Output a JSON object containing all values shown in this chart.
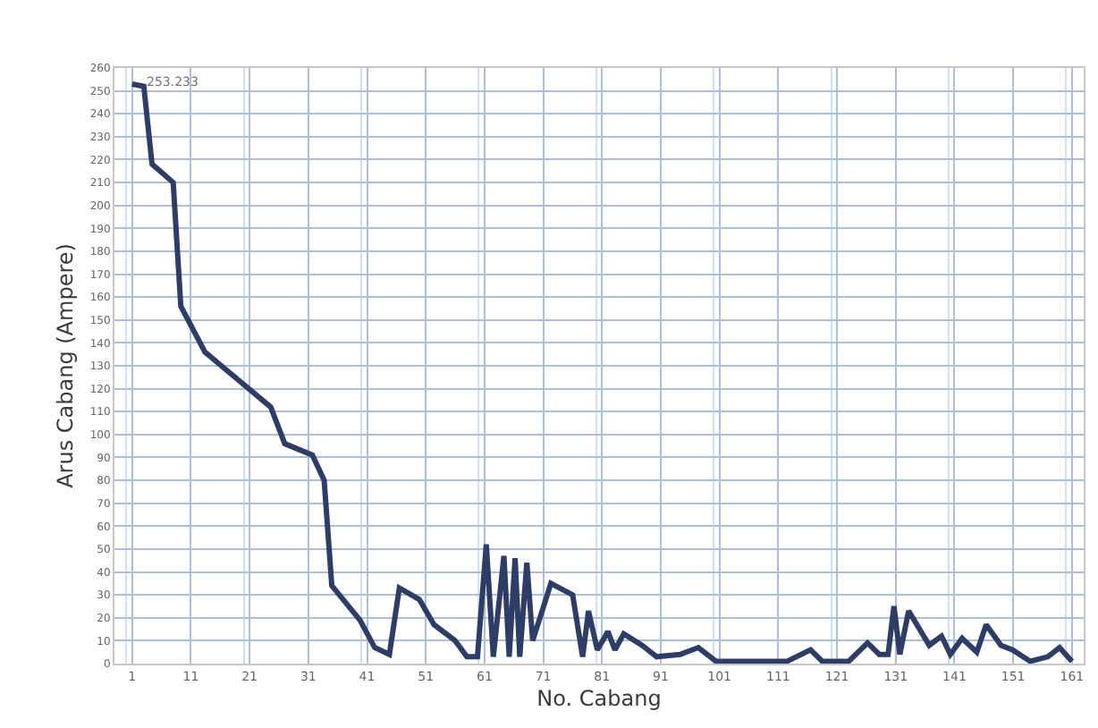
{
  "chart_data": {
    "type": "line",
    "xlabel": "No. Cabang",
    "ylabel": "Arus Cabang (Ampere)",
    "annotations": [
      "253.233"
    ],
    "xlim": [
      -2,
      163
    ],
    "xticks": [
      1,
      11,
      21,
      31,
      41,
      51,
      61,
      71,
      81,
      91,
      101,
      111,
      121,
      131,
      141,
      151,
      161
    ],
    "ylim": [
      0,
      260
    ],
    "yticks": [
      0,
      10,
      20,
      30,
      40,
      50,
      60,
      70,
      80,
      90,
      100,
      110,
      120,
      130,
      140,
      150,
      160,
      170,
      180,
      190,
      200,
      210,
      220,
      230,
      240,
      250,
      260
    ],
    "grid": true,
    "marker": "none",
    "line_style": "solid",
    "series": [
      {
        "color": "#2e3d66",
        "x": [
          1,
          3,
          4.4,
          8,
          9.3,
          13.4,
          24.6,
          27,
          31.7,
          33.7,
          35,
          39.8,
          42.3,
          44.8,
          46.5,
          49.9,
          52.4,
          56,
          58,
          59.8,
          61.3,
          62.5,
          64.3,
          65.2,
          66.2,
          67,
          68.2,
          69.2,
          72.3,
          76,
          77.7,
          78.7,
          80.2,
          82,
          83.2,
          84.7,
          87.8,
          90.3,
          94.3,
          97.4,
          100.4,
          112.5,
          116.5,
          118.5,
          123,
          126.2,
          128.2,
          129.7,
          130.7,
          131.7,
          133.2,
          136.7,
          138.8,
          140.3,
          142.3,
          144.8,
          146.4,
          148.9,
          150.9,
          153.9,
          156.9,
          158.9,
          161
        ],
        "values": [
          253,
          252,
          218,
          210,
          156,
          136,
          112,
          96,
          91,
          80,
          34,
          19,
          7,
          4,
          33,
          28,
          17,
          10,
          3,
          3,
          52,
          3,
          47,
          3,
          46,
          3,
          44,
          10,
          35,
          30,
          3,
          23,
          6,
          14,
          6,
          13,
          8,
          3,
          4,
          7,
          1,
          1,
          6,
          1,
          1,
          9,
          4,
          4,
          25,
          4,
          23,
          8,
          12,
          4,
          11,
          5,
          17,
          8,
          6,
          1,
          3,
          7,
          1
        ]
      }
    ]
  }
}
